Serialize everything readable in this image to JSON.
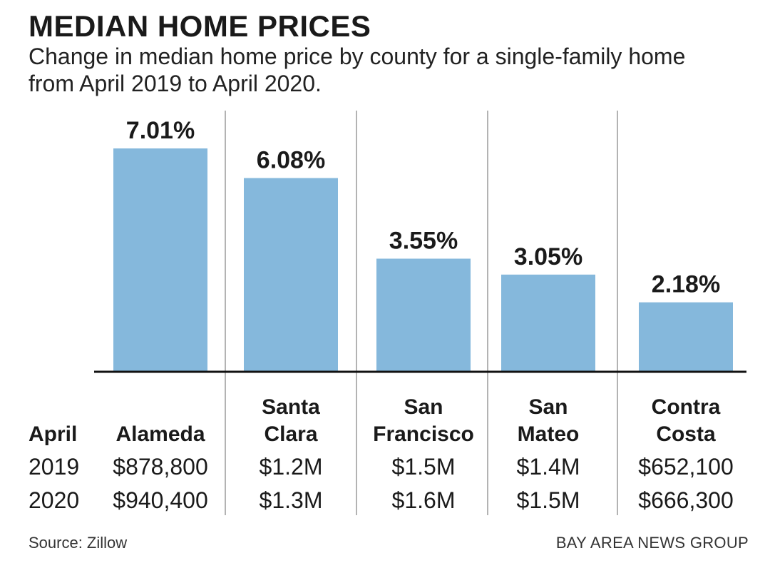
{
  "header": {
    "title": "MEDIAN HOME PRICES",
    "subtitle": "Change in median home price by county for a single-family home from April 2019 to April 2020."
  },
  "colors": {
    "bar": "#85b8dc",
    "axis": "#111111",
    "divider": "#9a9a9a"
  },
  "chart_data": {
    "type": "bar",
    "title": "MEDIAN HOME PRICES",
    "subtitle": "Change in median home price by county for a single-family home from April 2019 to April 2020.",
    "xlabel": "",
    "ylabel": "",
    "ylim": [
      0,
      7.5
    ],
    "categories": [
      "Alameda",
      "Santa Clara",
      "San Francisco",
      "San Mateo",
      "Contra Costa"
    ],
    "category_lines": [
      [
        "Alameda"
      ],
      [
        "Santa",
        "Clara"
      ],
      [
        "San",
        "Francisco"
      ],
      [
        "San",
        "Mateo"
      ],
      [
        "Contra",
        "Costa"
      ]
    ],
    "values": [
      7.01,
      6.08,
      3.55,
      3.05,
      2.18
    ],
    "value_labels": [
      "7.01%",
      "6.08%",
      "3.55%",
      "3.05%",
      "2.18%"
    ],
    "grid": false,
    "legend": null,
    "table": {
      "header_label": "April",
      "rows": [
        {
          "label": "2019",
          "values": [
            "$878,800",
            "$1.2M",
            "$1.5M",
            "$1.4M",
            "$652,100"
          ]
        },
        {
          "label": "2020",
          "values": [
            "$940,400",
            "$1.3M",
            "$1.6M",
            "$1.5M",
            "$666,300"
          ]
        }
      ]
    }
  },
  "footer": {
    "source": "Source: Zillow",
    "credit": "BAY AREA NEWS GROUP"
  }
}
